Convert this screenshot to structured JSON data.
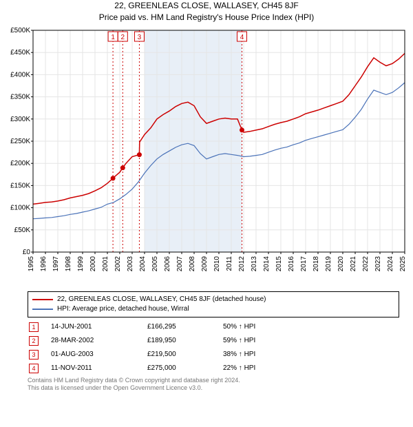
{
  "title_line1": "22, GREENLEAS CLOSE, WALLASEY, CH45 8JF",
  "title_line2": "Price paid vs. HM Land Registry's House Price Index (HPI)",
  "chart": {
    "type": "line",
    "background_color": "#ffffff",
    "plot_border_color": "#000000",
    "grid_color": "#e5e5e5",
    "shaded_band_color": "#e8eff7",
    "tx_line_color": "#cc0000",
    "tick_fontsize": 10,
    "x_start_year": 1995,
    "x_end_year": 2025,
    "x_ticks": [
      1995,
      1996,
      1997,
      1998,
      1999,
      2000,
      2001,
      2002,
      2003,
      2004,
      2005,
      2006,
      2007,
      2008,
      2009,
      2010,
      2011,
      2012,
      2013,
      2014,
      2015,
      2016,
      2017,
      2018,
      2019,
      2020,
      2021,
      2022,
      2023,
      2024,
      2025
    ],
    "y_min": 0,
    "y_max": 500000,
    "y_tick_step": 50000,
    "y_prefix": "£",
    "y_suffix_thousands": "K",
    "series": [
      {
        "name": "property",
        "label": "22, GREENLEAS CLOSE, WALLASEY, CH45 8JF (detached house)",
        "color": "#cc0000",
        "line_width": 1.5,
        "points": [
          [
            1995.0,
            108000
          ],
          [
            1995.5,
            110000
          ],
          [
            1996.0,
            112000
          ],
          [
            1996.5,
            113000
          ],
          [
            1997.0,
            115000
          ],
          [
            1997.5,
            118000
          ],
          [
            1998.0,
            122000
          ],
          [
            1998.5,
            125000
          ],
          [
            1999.0,
            128000
          ],
          [
            1999.5,
            132000
          ],
          [
            2000.0,
            138000
          ],
          [
            2000.5,
            145000
          ],
          [
            2001.0,
            155000
          ],
          [
            2001.45,
            166295
          ],
          [
            2001.5,
            168000
          ],
          [
            2002.0,
            180000
          ],
          [
            2002.24,
            189950
          ],
          [
            2002.5,
            200000
          ],
          [
            2003.0,
            215000
          ],
          [
            2003.58,
            219500
          ],
          [
            2003.6,
            248000
          ],
          [
            2004.0,
            265000
          ],
          [
            2004.5,
            280000
          ],
          [
            2005.0,
            300000
          ],
          [
            2005.5,
            310000
          ],
          [
            2006.0,
            318000
          ],
          [
            2006.5,
            328000
          ],
          [
            2007.0,
            335000
          ],
          [
            2007.5,
            338000
          ],
          [
            2008.0,
            330000
          ],
          [
            2008.5,
            305000
          ],
          [
            2009.0,
            290000
          ],
          [
            2009.5,
            295000
          ],
          [
            2010.0,
            300000
          ],
          [
            2010.5,
            302000
          ],
          [
            2011.0,
            300000
          ],
          [
            2011.5,
            300000
          ],
          [
            2011.86,
            275000
          ],
          [
            2012.0,
            270000
          ],
          [
            2012.5,
            272000
          ],
          [
            2013.0,
            275000
          ],
          [
            2013.5,
            278000
          ],
          [
            2014.0,
            283000
          ],
          [
            2014.5,
            288000
          ],
          [
            2015.0,
            292000
          ],
          [
            2015.5,
            295000
          ],
          [
            2016.0,
            300000
          ],
          [
            2016.5,
            305000
          ],
          [
            2017.0,
            312000
          ],
          [
            2017.5,
            316000
          ],
          [
            2018.0,
            320000
          ],
          [
            2018.5,
            325000
          ],
          [
            2019.0,
            330000
          ],
          [
            2019.5,
            335000
          ],
          [
            2020.0,
            340000
          ],
          [
            2020.5,
            355000
          ],
          [
            2021.0,
            375000
          ],
          [
            2021.5,
            395000
          ],
          [
            2022.0,
            418000
          ],
          [
            2022.5,
            438000
          ],
          [
            2023.0,
            428000
          ],
          [
            2023.5,
            420000
          ],
          [
            2024.0,
            425000
          ],
          [
            2024.5,
            435000
          ],
          [
            2025.0,
            448000
          ]
        ],
        "sale_markers": [
          {
            "x": 2001.45,
            "y": 166295
          },
          {
            "x": 2002.24,
            "y": 189950
          },
          {
            "x": 2003.58,
            "y": 219500
          },
          {
            "x": 2011.86,
            "y": 275000
          }
        ]
      },
      {
        "name": "hpi",
        "label": "HPI: Average price, detached house, Wirral",
        "color": "#4a72b8",
        "line_width": 1.2,
        "points": [
          [
            1995.0,
            75000
          ],
          [
            1995.5,
            76000
          ],
          [
            1996.0,
            77000
          ],
          [
            1996.5,
            78000
          ],
          [
            1997.0,
            80000
          ],
          [
            1997.5,
            82000
          ],
          [
            1998.0,
            85000
          ],
          [
            1998.5,
            87000
          ],
          [
            1999.0,
            90000
          ],
          [
            1999.5,
            93000
          ],
          [
            2000.0,
            97000
          ],
          [
            2000.5,
            101000
          ],
          [
            2001.0,
            108000
          ],
          [
            2001.5,
            112000
          ],
          [
            2002.0,
            120000
          ],
          [
            2002.5,
            130000
          ],
          [
            2003.0,
            142000
          ],
          [
            2003.5,
            158000
          ],
          [
            2004.0,
            178000
          ],
          [
            2004.5,
            195000
          ],
          [
            2005.0,
            210000
          ],
          [
            2005.5,
            220000
          ],
          [
            2006.0,
            228000
          ],
          [
            2006.5,
            236000
          ],
          [
            2007.0,
            242000
          ],
          [
            2007.5,
            245000
          ],
          [
            2008.0,
            240000
          ],
          [
            2008.5,
            222000
          ],
          [
            2009.0,
            210000
          ],
          [
            2009.5,
            215000
          ],
          [
            2010.0,
            220000
          ],
          [
            2010.5,
            222000
          ],
          [
            2011.0,
            220000
          ],
          [
            2011.5,
            218000
          ],
          [
            2012.0,
            215000
          ],
          [
            2012.5,
            216000
          ],
          [
            2013.0,
            218000
          ],
          [
            2013.5,
            220000
          ],
          [
            2014.0,
            225000
          ],
          [
            2014.5,
            230000
          ],
          [
            2015.0,
            234000
          ],
          [
            2015.5,
            237000
          ],
          [
            2016.0,
            242000
          ],
          [
            2016.5,
            246000
          ],
          [
            2017.0,
            252000
          ],
          [
            2017.5,
            256000
          ],
          [
            2018.0,
            260000
          ],
          [
            2018.5,
            264000
          ],
          [
            2019.0,
            268000
          ],
          [
            2019.5,
            272000
          ],
          [
            2020.0,
            276000
          ],
          [
            2020.5,
            288000
          ],
          [
            2021.0,
            304000
          ],
          [
            2021.5,
            322000
          ],
          [
            2022.0,
            345000
          ],
          [
            2022.5,
            365000
          ],
          [
            2023.0,
            360000
          ],
          [
            2023.5,
            355000
          ],
          [
            2024.0,
            360000
          ],
          [
            2024.5,
            370000
          ],
          [
            2025.0,
            382000
          ]
        ]
      }
    ],
    "shaded_band": {
      "x_from": 2004.0,
      "x_to": 2011.86
    },
    "tx_lines": [
      2001.45,
      2002.24,
      2003.58,
      2011.86
    ],
    "flag_markers": [
      {
        "n": "1",
        "x": 2001.45
      },
      {
        "n": "2",
        "x": 2002.24
      },
      {
        "n": "3",
        "x": 2003.58
      },
      {
        "n": "4",
        "x": 2011.86
      }
    ]
  },
  "legend": {
    "items": [
      {
        "color": "#cc0000",
        "label": "22, GREENLEAS CLOSE, WALLASEY, CH45 8JF (detached house)"
      },
      {
        "color": "#4a72b8",
        "label": "HPI: Average price, detached house, Wirral"
      }
    ]
  },
  "transactions": [
    {
      "n": "1",
      "date": "14-JUN-2001",
      "price": "£166,295",
      "pct": "50% ↑ HPI"
    },
    {
      "n": "2",
      "date": "28-MAR-2002",
      "price": "£189,950",
      "pct": "59% ↑ HPI"
    },
    {
      "n": "3",
      "date": "01-AUG-2003",
      "price": "£219,500",
      "pct": "38% ↑ HPI"
    },
    {
      "n": "4",
      "date": "11-NOV-2011",
      "price": "£275,000",
      "pct": "22% ↑ HPI"
    }
  ],
  "footer_line1": "Contains HM Land Registry data © Crown copyright and database right 2024.",
  "footer_line2": "This data is licensed under the Open Government Licence v3.0."
}
